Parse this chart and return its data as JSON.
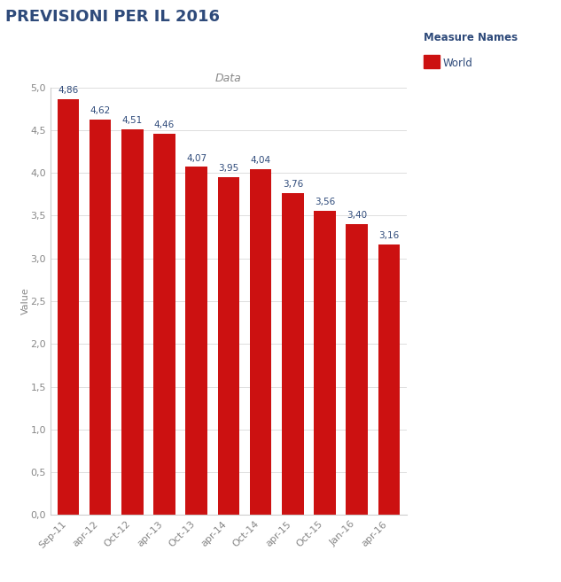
{
  "title": "PREVISIONI PER IL 2016",
  "subtitle": "Data",
  "ylabel": "Value",
  "categories": [
    "Sep-11",
    "apr-12",
    "Oct-12",
    "apr-13",
    "Oct-13",
    "apr-14",
    "Oct-14",
    "apr-15",
    "Oct-15",
    "Jan-16",
    "apr-16"
  ],
  "values": [
    4.86,
    4.62,
    4.51,
    4.46,
    4.07,
    3.95,
    4.04,
    3.76,
    3.56,
    3.4,
    3.16
  ],
  "bar_color": "#CC1111",
  "bar_edge_color": "#CC1111",
  "ylim": [
    0,
    5.0
  ],
  "yticks": [
    0.0,
    0.5,
    1.0,
    1.5,
    2.0,
    2.5,
    3.0,
    3.5,
    4.0,
    4.5,
    5.0
  ],
  "ytick_labels": [
    "0,0",
    "0,5",
    "1,0",
    "1,5",
    "2,0",
    "2,5",
    "3,0",
    "3,5",
    "4,0",
    "4,5",
    "5,0"
  ],
  "legend_label": "World",
  "legend_color": "#CC1111",
  "title_fontsize": 13,
  "subtitle_fontsize": 9,
  "label_fontsize": 8,
  "tick_fontsize": 8,
  "value_label_color": "#2E4A7A",
  "value_label_fontsize": 7.5,
  "title_color": "#2E4A7A",
  "legend_title_color": "#2E4A7A",
  "tick_color": "#888888",
  "background_color": "#FFFFFF",
  "plot_bg_color": "#FFFFFF",
  "grid_color": "#DDDDDD",
  "axis_color": "#CCCCCC"
}
